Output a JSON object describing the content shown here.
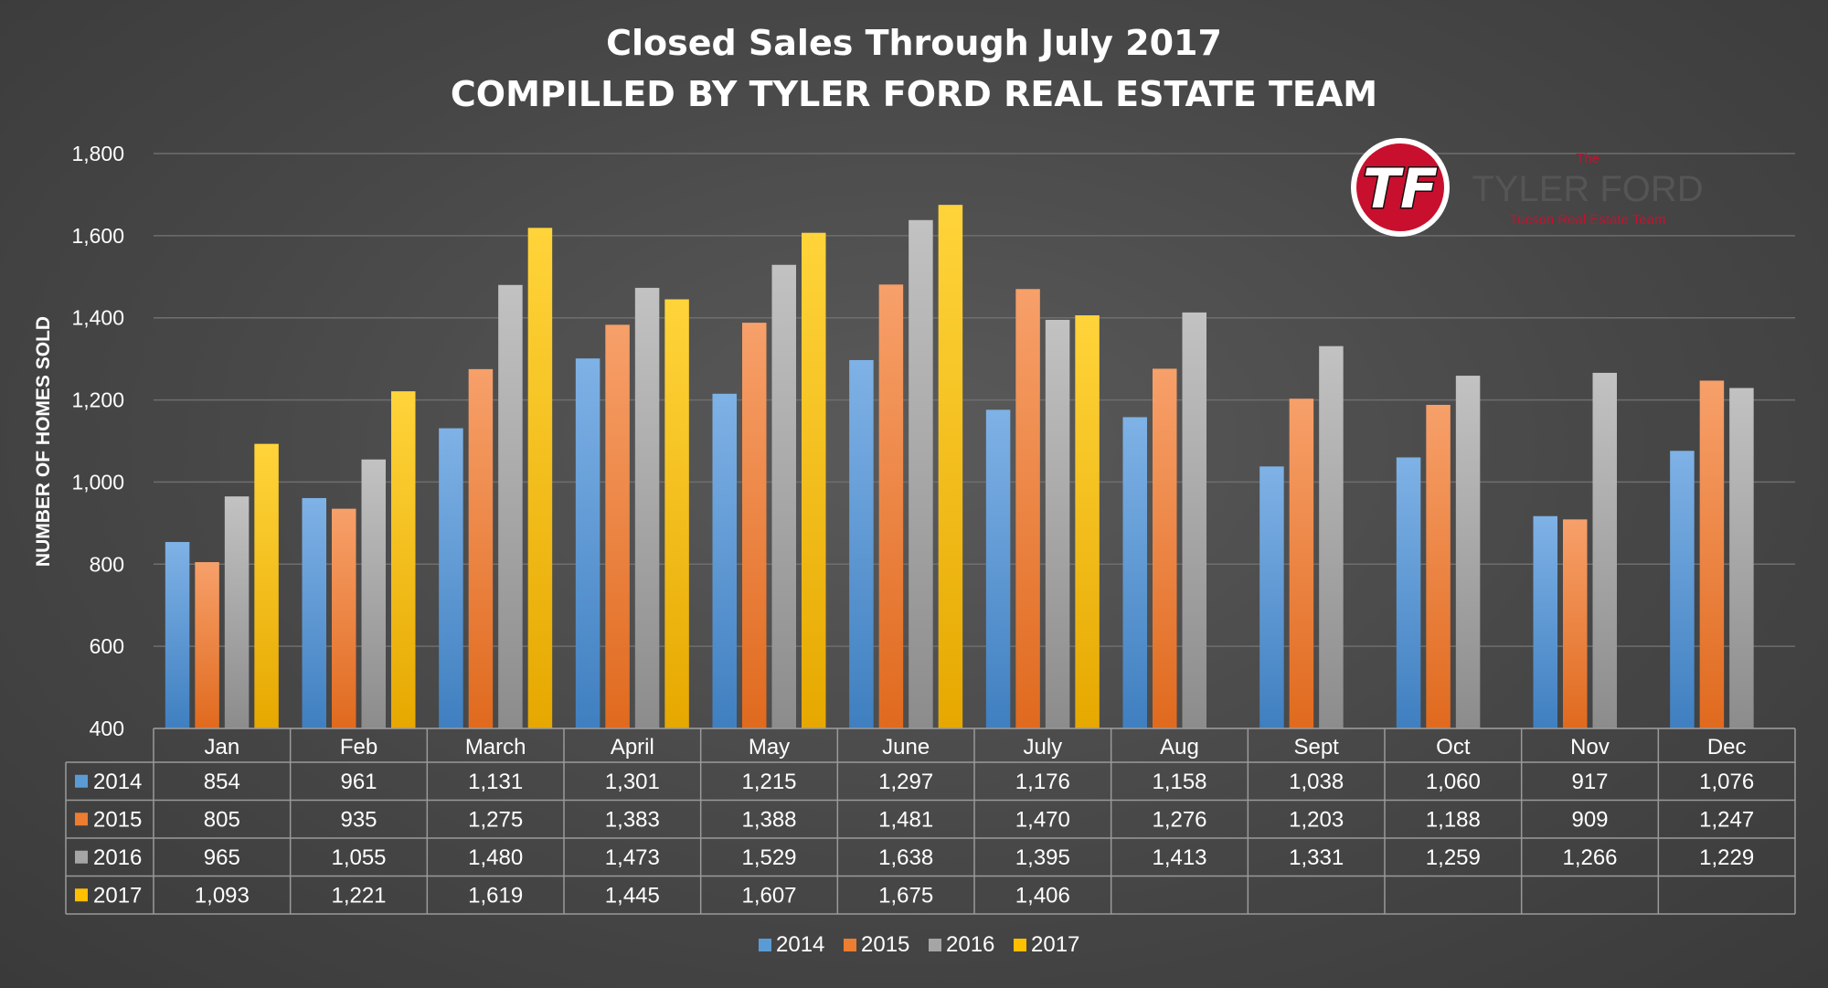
{
  "logo": {
    "letters": "TF",
    "the": "The",
    "name": "TYLER FORD",
    "tagline": "Tucson Real Estate Team",
    "red": "#c8102e"
  },
  "chart_data": {
    "type": "bar",
    "title": "Closed Sales Through July 2017",
    "subtitle": "COMPILLED BY TYLER FORD REAL ESTATE TEAM",
    "ylabel": "NUMBER OF HOMES SOLD",
    "xlabel": "",
    "ylim": [
      400,
      1800
    ],
    "yticks": [
      "400",
      "600",
      "800",
      "1,000",
      "1,200",
      "1,400",
      "1,600",
      "1,800"
    ],
    "grid": true,
    "legend_position": "bottom",
    "categories": [
      "Jan",
      "Feb",
      "March",
      "April",
      "May",
      "June",
      "July",
      "Aug",
      "Sept",
      "Oct",
      "Nov",
      "Dec"
    ],
    "series": [
      {
        "name": "2014",
        "color": "#5b9bd5",
        "values": [
          854,
          961,
          1131,
          1301,
          1215,
          1297,
          1176,
          1158,
          1038,
          1060,
          917,
          1076
        ],
        "labels": [
          "854",
          "961",
          "1,131",
          "1,301",
          "1,215",
          "1,297",
          "1,176",
          "1,158",
          "1,038",
          "1,060",
          "917",
          "1,076"
        ]
      },
      {
        "name": "2015",
        "color": "#ed7d31",
        "values": [
          805,
          935,
          1275,
          1383,
          1388,
          1481,
          1470,
          1276,
          1203,
          1188,
          909,
          1247
        ],
        "labels": [
          "805",
          "935",
          "1,275",
          "1,383",
          "1,388",
          "1,481",
          "1,470",
          "1,276",
          "1,203",
          "1,188",
          "909",
          "1,247"
        ]
      },
      {
        "name": "2016",
        "color": "#a5a5a5",
        "values": [
          965,
          1055,
          1480,
          1473,
          1529,
          1638,
          1395,
          1413,
          1331,
          1259,
          1266,
          1229
        ],
        "labels": [
          "965",
          "1,055",
          "1,480",
          "1,473",
          "1,529",
          "1,638",
          "1,395",
          "1,413",
          "1,331",
          "1,259",
          "1,266",
          "1,229"
        ]
      },
      {
        "name": "2017",
        "color": "#ffc000",
        "values": [
          1093,
          1221,
          1619,
          1445,
          1607,
          1675,
          1406,
          null,
          null,
          null,
          null,
          null
        ],
        "labels": [
          "1,093",
          "1,221",
          "1,619",
          "1,445",
          "1,607",
          "1,675",
          "1,406",
          "",
          "",
          "",
          "",
          ""
        ]
      }
    ]
  }
}
